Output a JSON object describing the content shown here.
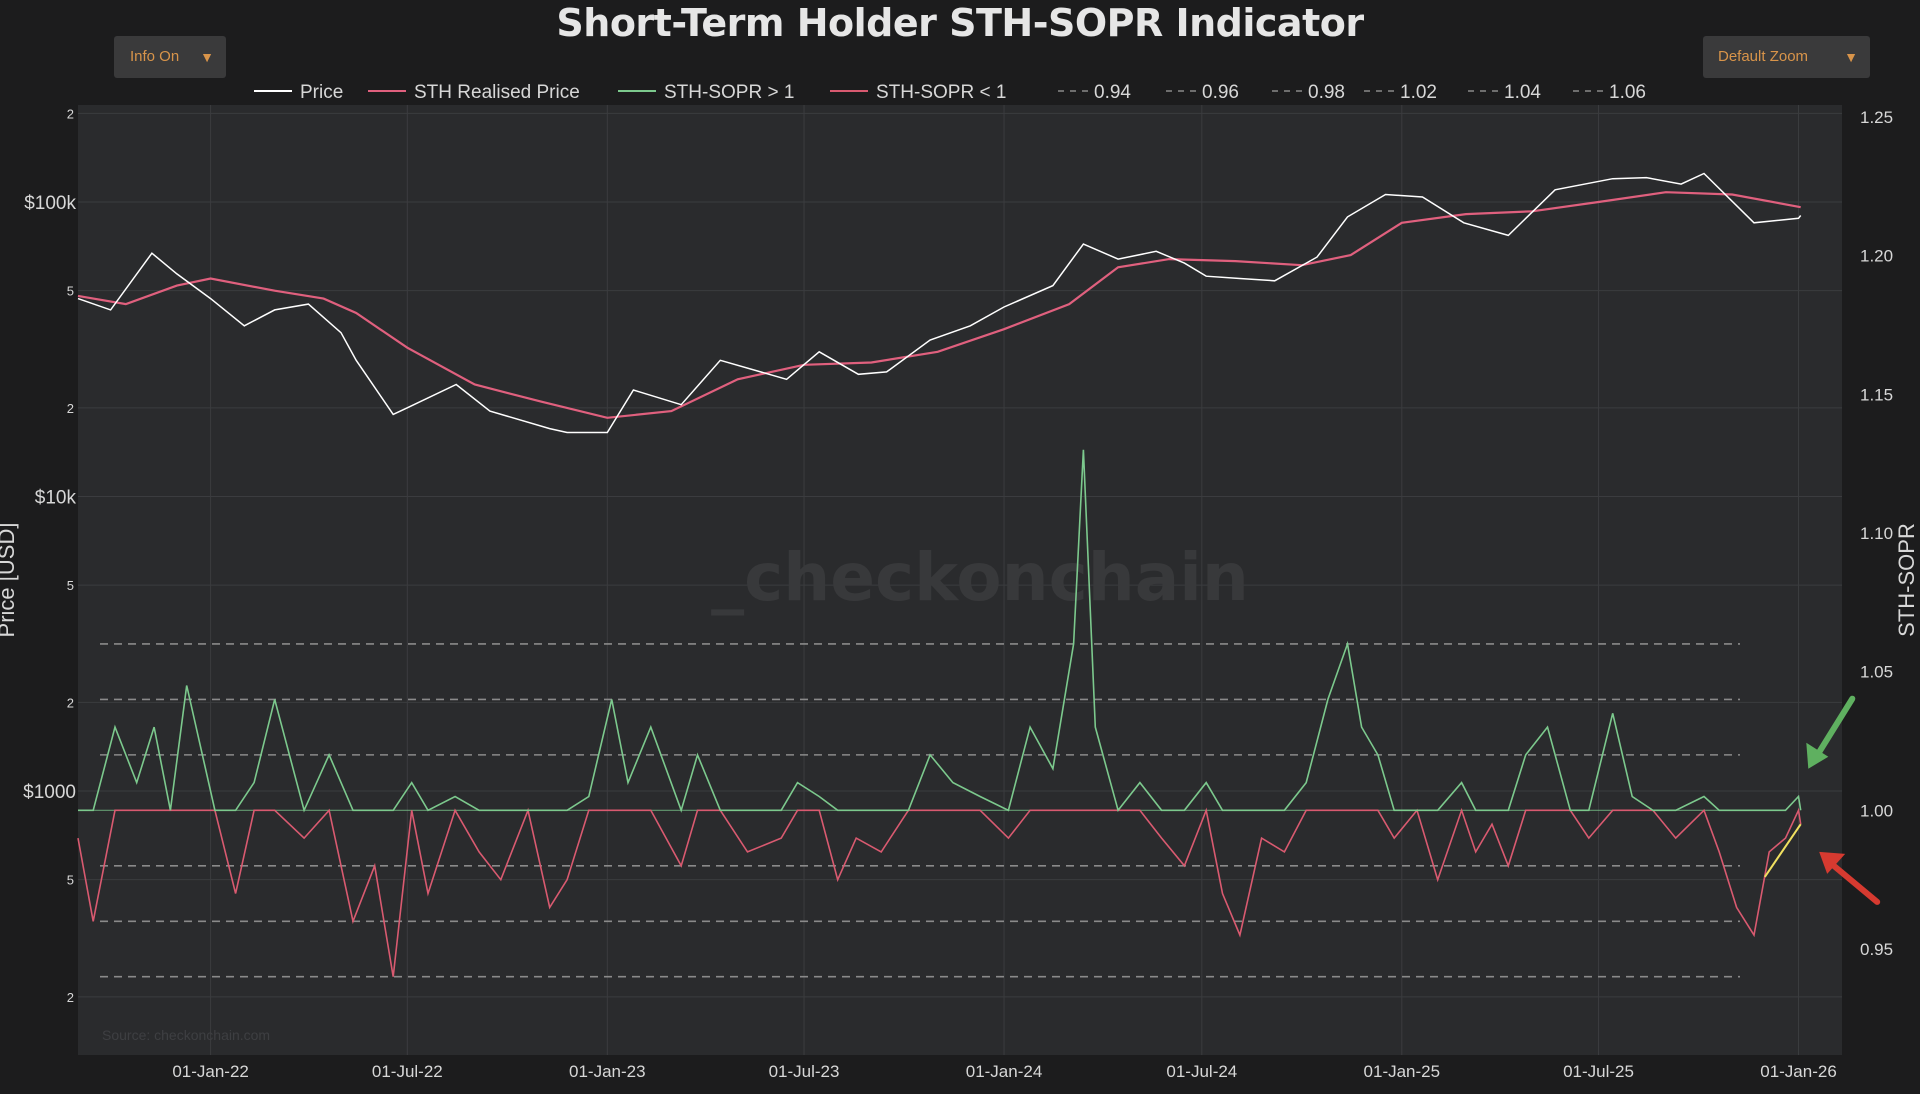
{
  "title": "Short-Term Holder STH-SOPR Indicator",
  "buttons": {
    "info": "Info On",
    "zoom": "Default Zoom",
    "caret": "▼"
  },
  "watermark": "_checkonchain",
  "source": "Source: checkonchain.com",
  "colors": {
    "background": "#1c1c1d",
    "plot": "#2a2b2d",
    "price": "#ffffff",
    "realised": "#e0607e",
    "sopr_up": "#7cc98d",
    "sopr_down": "#d95a70",
    "guide": "#8a8a8a",
    "trendline": "#f0e060",
    "arrow_green": "#5fb060",
    "arrow_red": "#d63a30"
  },
  "chart_data": {
    "type": "line",
    "title": "Short-Term Holder STH-SOPR Indicator",
    "xlabel": "",
    "ylabel_left": "Price [USD]",
    "ylabel_right": "STH-SOPR",
    "y_left_scale": "log",
    "y_left_ticks": [
      {
        "v": 200,
        "t": "2"
      },
      {
        "v": 500,
        "t": "5"
      },
      {
        "v": 1000,
        "t": "$1000"
      },
      {
        "v": 2000,
        "t": "2"
      },
      {
        "v": 5000,
        "t": "5"
      },
      {
        "v": 10000,
        "t": "$10k"
      },
      {
        "v": 20000,
        "t": "2"
      },
      {
        "v": 50000,
        "t": "5"
      },
      {
        "v": 100000,
        "t": "$100k"
      },
      {
        "v": 200000,
        "t": "2"
      }
    ],
    "y_right_ticks": [
      0.95,
      1.0,
      1.05,
      1.1,
      1.15,
      1.2,
      1.25
    ],
    "y_right_tick_labels": [
      "0.95",
      "1.00",
      "1.05",
      "1.10",
      "1.15",
      "1.20",
      "1.25"
    ],
    "x_ticks": [
      "01-Jan-22",
      "01-Jul-22",
      "01-Jan-23",
      "01-Jul-23",
      "01-Jan-24",
      "01-Jul-24",
      "01-Jan-25",
      "01-Jul-25",
      "01-Jan-26"
    ],
    "guides": [
      0.94,
      0.96,
      0.98,
      1.02,
      1.04,
      1.06
    ],
    "legend": [
      "Price",
      "STH Realised Price",
      "STH-SOPR > 1",
      "STH-SOPR < 1",
      "0.94",
      "0.96",
      "0.98",
      "1.02",
      "1.04",
      "1.06"
    ],
    "legend_placement": "top-center",
    "grid": true,
    "series": [
      {
        "name": "Price",
        "x": [
          "2021-09-01",
          "2021-10-01",
          "2021-11-08",
          "2021-12-01",
          "2022-01-01",
          "2022-02-01",
          "2022-03-01",
          "2022-04-01",
          "2022-05-01",
          "2022-05-15",
          "2022-06-18",
          "2022-07-01",
          "2022-08-15",
          "2022-09-15",
          "2022-11-09",
          "2022-11-25",
          "2023-01-01",
          "2023-01-25",
          "2023-03-10",
          "2023-04-15",
          "2023-06-15",
          "2023-07-15",
          "2023-08-20",
          "2023-09-15",
          "2023-10-25",
          "2023-12-01",
          "2024-01-01",
          "2024-02-15",
          "2024-03-14",
          "2024-04-15",
          "2024-05-20",
          "2024-06-15",
          "2024-07-05",
          "2024-08-05",
          "2024-09-06",
          "2024-10-15",
          "2024-11-12",
          "2024-12-17",
          "2025-01-20",
          "2025-02-27",
          "2025-04-09",
          "2025-05-22",
          "2025-07-14",
          "2025-08-14",
          "2025-09-15",
          "2025-10-06",
          "2025-11-21",
          "2026-01-01",
          "2026-01-03"
        ],
        "y": [
          47000,
          43000,
          67000,
          57000,
          47000,
          38000,
          43000,
          45000,
          36000,
          29000,
          19000,
          20000,
          24000,
          19500,
          17000,
          16500,
          16500,
          23000,
          20500,
          29000,
          25000,
          31000,
          26000,
          26500,
          34000,
          38000,
          44000,
          52000,
          72000,
          64000,
          68000,
          62000,
          56000,
          55000,
          54000,
          65000,
          89000,
          106000,
          104000,
          85000,
          77000,
          110000,
          120000,
          121000,
          115000,
          125000,
          85000,
          88000,
          90000
        ]
      },
      {
        "name": "STH Realised Price",
        "x": [
          "2021-09-01",
          "2021-10-15",
          "2021-12-01",
          "2022-01-01",
          "2022-03-01",
          "2022-04-15",
          "2022-05-15",
          "2022-07-01",
          "2022-09-01",
          "2022-11-01",
          "2023-01-01",
          "2023-03-01",
          "2023-05-01",
          "2023-07-01",
          "2023-09-01",
          "2023-11-01",
          "2024-01-01",
          "2024-03-01",
          "2024-04-15",
          "2024-06-01",
          "2024-08-01",
          "2024-10-01",
          "2024-11-15",
          "2025-01-01",
          "2025-03-01",
          "2025-05-01",
          "2025-07-01",
          "2025-09-01",
          "2025-11-01",
          "2026-01-03"
        ],
        "y": [
          48000,
          45000,
          52000,
          55000,
          50000,
          47000,
          42000,
          32000,
          24000,
          21000,
          18500,
          19500,
          25000,
          28000,
          28500,
          31000,
          37000,
          45000,
          60000,
          64000,
          63000,
          61000,
          66000,
          85000,
          91000,
          93000,
          100000,
          108000,
          106000,
          96000
        ]
      }
    ],
    "sopr_series": {
      "name": "STH-SOPR",
      "threshold": 1.0,
      "x": [
        "2021-09-01",
        "2021-09-15",
        "2021-10-05",
        "2021-10-25",
        "2021-11-10",
        "2021-11-25",
        "2021-12-10",
        "2022-01-05",
        "2022-01-24",
        "2022-02-10",
        "2022-03-01",
        "2022-03-28",
        "2022-04-20",
        "2022-05-12",
        "2022-06-01",
        "2022-06-18",
        "2022-07-05",
        "2022-07-20",
        "2022-08-14",
        "2022-09-05",
        "2022-09-25",
        "2022-10-20",
        "2022-11-09",
        "2022-11-25",
        "2022-12-15",
        "2023-01-05",
        "2023-01-20",
        "2023-02-10",
        "2023-03-10",
        "2023-03-25",
        "2023-04-15",
        "2023-05-10",
        "2023-06-10",
        "2023-06-25",
        "2023-07-15",
        "2023-08-01",
        "2023-08-18",
        "2023-09-10",
        "2023-10-05",
        "2023-10-25",
        "2023-11-15",
        "2023-12-10",
        "2024-01-05",
        "2024-01-25",
        "2024-02-15",
        "2024-03-05",
        "2024-03-14",
        "2024-03-25",
        "2024-04-15",
        "2024-05-05",
        "2024-05-25",
        "2024-06-15",
        "2024-07-05",
        "2024-07-20",
        "2024-08-05",
        "2024-08-25",
        "2024-09-15",
        "2024-10-05",
        "2024-10-25",
        "2024-11-12",
        "2024-11-25",
        "2024-12-10",
        "2024-12-25",
        "2025-01-15",
        "2025-02-03",
        "2025-02-25",
        "2025-03-10",
        "2025-03-25",
        "2025-04-09",
        "2025-04-25",
        "2025-05-15",
        "2025-06-05",
        "2025-06-22",
        "2025-07-14",
        "2025-08-01",
        "2025-08-20",
        "2025-09-10",
        "2025-10-06",
        "2025-10-20",
        "2025-11-05",
        "2025-11-21",
        "2025-12-05",
        "2025-12-20",
        "2026-01-01",
        "2026-01-03"
      ],
      "y": [
        0.99,
        0.96,
        1.03,
        1.01,
        1.03,
        1.0,
        1.045,
        1.0,
        0.97,
        1.01,
        1.04,
        0.99,
        1.02,
        0.96,
        0.98,
        0.94,
        1.01,
        0.97,
        1.005,
        0.985,
        0.975,
        1.0,
        0.965,
        0.975,
        1.005,
        1.04,
        1.01,
        1.03,
        0.98,
        1.02,
        1.0,
        0.985,
        0.99,
        1.01,
        1.005,
        0.975,
        0.99,
        0.985,
        1.0,
        1.02,
        1.01,
        1.005,
        0.99,
        1.03,
        1.015,
        1.06,
        1.13,
        1.03,
        1.0,
        1.01,
        0.99,
        0.98,
        1.01,
        0.97,
        0.955,
        0.99,
        0.985,
        1.01,
        1.04,
        1.06,
        1.03,
        1.02,
        0.99,
        1.0,
        0.975,
        1.01,
        0.985,
        0.995,
        0.98,
        1.02,
        1.03,
        1.0,
        0.99,
        1.035,
        1.005,
        1.0,
        0.99,
        1.005,
        0.985,
        0.965,
        0.955,
        0.985,
        0.99,
        1.005,
        0.995
      ]
    },
    "annotations": [
      {
        "type": "trendline",
        "color": "yellow",
        "from": {
          "x": "2025-12-01",
          "y": 0.976
        },
        "to": {
          "x": "2026-01-03",
          "y": 0.995
        }
      },
      {
        "type": "arrow",
        "color": "green",
        "direction": "down-left",
        "points_to": {
          "x": "2026-01-10",
          "y": 1.015
        }
      },
      {
        "type": "arrow",
        "color": "red",
        "direction": "up-left",
        "points_to": {
          "x": "2026-01-20",
          "y": 0.985
        }
      }
    ]
  }
}
